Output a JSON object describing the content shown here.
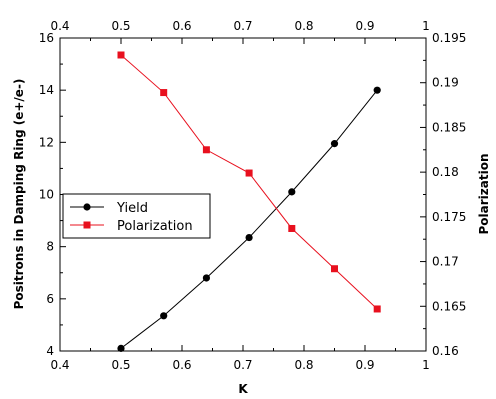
{
  "chart_data": {
    "type": "line",
    "title": "",
    "xlabel": "K",
    "ylabel_left": "Positrons in Damping Ring (e+/e-)",
    "ylabel_right": "Polarization",
    "xlim": [
      0.4,
      1.0
    ],
    "ylim_left": [
      4,
      16
    ],
    "ylim_right": [
      0.16,
      0.195
    ],
    "x_ticks": [
      "0.4",
      "0.5",
      "0.6",
      "0.7",
      "0.8",
      "0.9",
      "1"
    ],
    "x_ticks_top": [
      "0.4",
      "0.5",
      "0.6",
      "0.7",
      "0.8",
      "0.9",
      "1"
    ],
    "y_ticks_left": [
      "4",
      "6",
      "8",
      "10",
      "12",
      "14",
      "16"
    ],
    "y_ticks_right": [
      "0.16",
      "0.165",
      "0.17",
      "0.175",
      "0.18",
      "0.185",
      "0.19",
      "0.195"
    ],
    "grid": false,
    "legend_position": "center-left",
    "series": [
      {
        "name": "Yield",
        "axis": "left",
        "color": "#000000",
        "marker": "circle",
        "x": [
          0.5,
          0.57,
          0.64,
          0.71,
          0.78,
          0.85,
          0.92
        ],
        "y": [
          4.1,
          5.35,
          6.8,
          8.35,
          10.1,
          11.95,
          14.0
        ]
      },
      {
        "name": "Polarization",
        "axis": "right",
        "color": "#e8101e",
        "marker": "square",
        "x": [
          0.5,
          0.57,
          0.64,
          0.71,
          0.78,
          0.85,
          0.92
        ],
        "y": [
          0.1931,
          0.1889,
          0.1825,
          0.1799,
          0.1737,
          0.1692,
          0.1647
        ]
      }
    ]
  }
}
